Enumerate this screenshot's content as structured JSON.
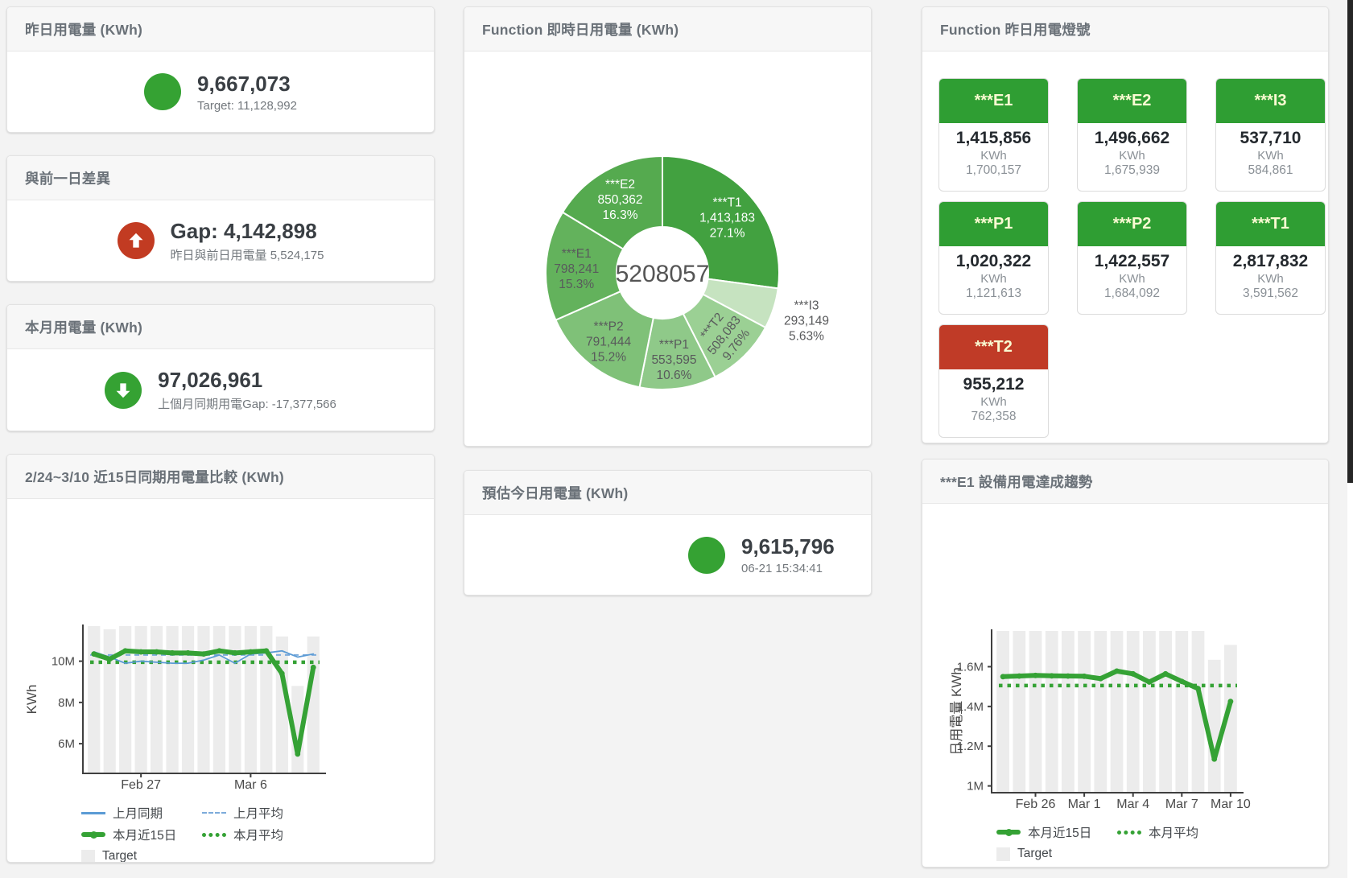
{
  "colors": {
    "green": "#2f9e33",
    "circle_green": "#35a233",
    "red": "#c23b22",
    "tile_red": "#c03b27",
    "bar_grey": "#ececec",
    "blue_line": "#5b9bd5",
    "blue_dash": "#7cabdb",
    "green_line": "#35a235"
  },
  "stat_cards": {
    "yesterday": {
      "title": "昨日用電量 (KWh)",
      "value": "9,667,073",
      "subtitle": "Target: 11,128,992"
    },
    "day_gap": {
      "title": "與前一日差異",
      "value": "Gap: 4,142,898",
      "subtitle": "昨日與前日用電量 5,524,175"
    },
    "month": {
      "title": "本月用電量 (KWh)",
      "value": "97,026,961",
      "subtitle": "上個月同期用電Gap: -17,377,566"
    },
    "today_estimate": {
      "title": "預估今日用電量 (KWh)",
      "value": "9,615,796",
      "subtitle": "06-21 15:34:41"
    }
  },
  "lights": {
    "title": "Function 昨日用電燈號",
    "unit": "KWh",
    "green": "#2f9e33",
    "red": "#c03b27",
    "header_text": "#f9fad2",
    "tiles": [
      {
        "name": "***E1",
        "value": "1,415,856",
        "target": "1,700,157",
        "status": "green"
      },
      {
        "name": "***E2",
        "value": "1,496,662",
        "target": "1,675,939",
        "status": "green"
      },
      {
        "name": "***I3",
        "value": "537,710",
        "target": "584,861",
        "status": "green"
      },
      {
        "name": "***P1",
        "value": "1,020,322",
        "target": "1,121,613",
        "status": "green"
      },
      {
        "name": "***P2",
        "value": "1,422,557",
        "target": "1,684,092",
        "status": "green"
      },
      {
        "name": "***T1",
        "value": "2,817,832",
        "target": "3,591,562",
        "status": "green"
      },
      {
        "name": "***T2",
        "value": "955,212",
        "target": "762,358",
        "status": "red"
      }
    ]
  },
  "chart_data": [
    {
      "type": "pie",
      "title": "Function 即時日用電量 (KWh)",
      "center_total": "5208057",
      "segments": [
        {
          "name": "***T1",
          "value": "1,413,183",
          "pct": "27.1%",
          "p": 27.1,
          "color": "#42a140",
          "text": "#ffffff"
        },
        {
          "name": "***I3",
          "value": "293,149",
          "pct": "5.63%",
          "p": 5.63,
          "color": "#c6e3c0",
          "text": "#595a5c",
          "outside": true
        },
        {
          "name": "***T2",
          "value": "508,083",
          "pct": "9.76%",
          "p": 9.76,
          "color": "#9bd094",
          "text": "#595a5c",
          "rotate": -52
        },
        {
          "name": "***P1",
          "value": "553,595",
          "pct": "10.6%",
          "p": 10.6,
          "color": "#8fc989",
          "text": "#595a5c"
        },
        {
          "name": "***P2",
          "value": "791,444",
          "pct": "15.2%",
          "p": 15.2,
          "color": "#7fc178",
          "text": "#595a5c"
        },
        {
          "name": "***E1",
          "value": "798,241",
          "pct": "15.3%",
          "p": 15.3,
          "color": "#63b25c",
          "text": "#595a5c"
        },
        {
          "name": "***E2",
          "value": "850,362",
          "pct": "16.3%",
          "p": 16.3,
          "color": "#55aa4f",
          "text": "#ffffff"
        }
      ]
    },
    {
      "type": "line",
      "title": "2/24~3/10 近15日同期用電量比較 (KWh)",
      "ylabel": "KWh",
      "unit": "million KWh",
      "ylim": [
        4.6,
        11.7
      ],
      "yticks": [
        {
          "v": 6,
          "t": "6M"
        },
        {
          "v": 8,
          "t": "8M"
        },
        {
          "v": 10,
          "t": "10M"
        }
      ],
      "xticks": [
        {
          "i": 3,
          "t": "Feb 27"
        },
        {
          "i": 10,
          "t": "Mar 6"
        }
      ],
      "series": [
        {
          "name": "Target",
          "type": "bar",
          "color": "#ececec",
          "values": [
            11.7,
            11.55,
            11.7,
            11.7,
            11.7,
            11.7,
            11.7,
            11.7,
            11.7,
            11.7,
            11.7,
            11.7,
            11.2,
            8.8,
            11.2
          ]
        },
        {
          "name": "上月平均",
          "type": "hline",
          "style": "dashed",
          "color": "#7cabdb",
          "value": 10.3
        },
        {
          "name": "本月平均",
          "type": "hline",
          "style": "dotted",
          "color": "#35a235",
          "value": 9.95
        },
        {
          "name": "上月同期",
          "type": "line",
          "color": "#5b9bd5",
          "width": 1.8,
          "values": [
            10.45,
            10.2,
            9.9,
            10.0,
            9.95,
            9.9,
            9.9,
            10.05,
            10.3,
            9.9,
            10.35,
            10.4,
            10.5,
            10.2,
            10.35
          ]
        },
        {
          "name": "本月近15日",
          "type": "line",
          "color": "#35a235",
          "width": 6,
          "values": [
            10.35,
            10.1,
            10.5,
            10.45,
            10.45,
            10.4,
            10.4,
            10.35,
            10.5,
            10.4,
            10.45,
            10.5,
            9.4,
            5.5,
            9.7
          ]
        }
      ],
      "legend": [
        {
          "label": "上月同期",
          "swatch": "line",
          "color": "#5b9bd5"
        },
        {
          "label": "上月平均",
          "swatch": "dashed",
          "color": "#7cabdb"
        },
        {
          "label": "本月近15日",
          "swatch": "thick",
          "color": "#35a235"
        },
        {
          "label": "本月平均",
          "swatch": "dotted",
          "color": "#35a235"
        },
        {
          "label": "Target",
          "swatch": "box",
          "color": "#ececec"
        }
      ]
    },
    {
      "type": "line",
      "title": "***E1 設備用電達成趨勢",
      "ylabel": "日用電量 KWh",
      "unit": "million KWh",
      "ylim": [
        0.97,
        1.78
      ],
      "yticks": [
        {
          "v": 1.0,
          "t": "1M"
        },
        {
          "v": 1.2,
          "t": "1.2M"
        },
        {
          "v": 1.4,
          "t": "1.4M"
        },
        {
          "v": 1.6,
          "t": "1.6M"
        }
      ],
      "xticks": [
        {
          "i": 2,
          "t": "Feb 26"
        },
        {
          "i": 5,
          "t": "Mar 1"
        },
        {
          "i": 8,
          "t": "Mar 4"
        },
        {
          "i": 11,
          "t": "Mar 7"
        },
        {
          "i": 14,
          "t": "Mar 10"
        }
      ],
      "series": [
        {
          "name": "Target",
          "type": "bar",
          "color": "#ececec",
          "values": [
            1.78,
            1.78,
            1.78,
            1.78,
            1.78,
            1.78,
            1.78,
            1.78,
            1.78,
            1.78,
            1.78,
            1.78,
            1.78,
            1.635,
            1.71
          ]
        },
        {
          "name": "本月平均",
          "type": "hline",
          "style": "dotted",
          "color": "#35a235",
          "value": 1.505
        },
        {
          "name": "本月近15日",
          "type": "line",
          "color": "#35a235",
          "width": 6,
          "values": [
            1.55,
            1.553,
            1.556,
            1.554,
            1.553,
            1.552,
            1.54,
            1.578,
            1.564,
            1.523,
            1.564,
            1.526,
            1.49,
            1.135,
            1.425
          ]
        }
      ],
      "legend": [
        {
          "label": "本月近15日",
          "swatch": "thick",
          "color": "#35a235"
        },
        {
          "label": "本月平均",
          "swatch": "dotted",
          "color": "#35a235"
        },
        {
          "label": "Target",
          "swatch": "box",
          "color": "#ececec"
        }
      ]
    }
  ]
}
